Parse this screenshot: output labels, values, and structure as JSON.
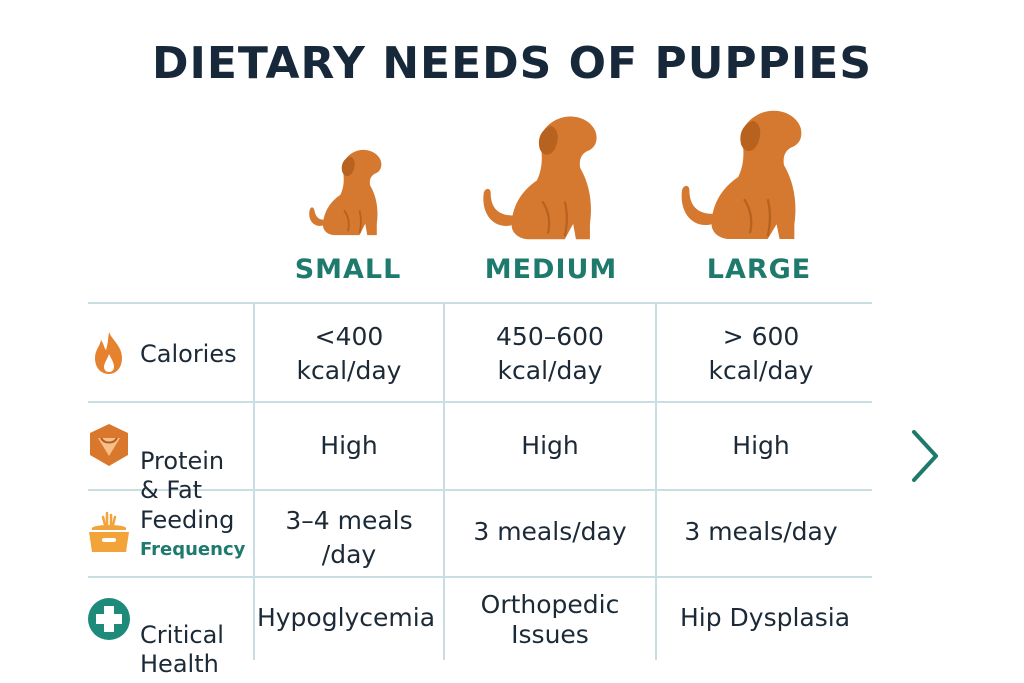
{
  "title": "DIETARY NEEDS OF PUPPIES",
  "columns": [
    "SMALL",
    "MEDIUM",
    "LARGE"
  ],
  "rows": [
    {
      "icon": "flame-icon",
      "label_main": "Calories",
      "label_sub": "",
      "values": [
        "<400\nkcal/day",
        "450–600\nkcal/day",
        "> 600\nkcal/day"
      ]
    },
    {
      "icon": "protein-shield-icon",
      "label_main": "Protein\n& Fat",
      "label_sub": "",
      "values": [
        "High",
        "High",
        "High"
      ]
    },
    {
      "icon": "food-bowl-icon",
      "label_main": "Feeding",
      "label_sub": "Frequency",
      "values": [
        "3–4 meals\n/day",
        "3 meals/day",
        "3 meals/day"
      ]
    },
    {
      "icon": "health-cross-icon",
      "label_main": "Critical\nHealth",
      "label_sub": "",
      "values": [
        "Hypoglycemia",
        "Orthopedic\nIssues",
        "Hip Dysplasia"
      ]
    }
  ],
  "colors": {
    "dog": "#d4792f",
    "dog_shade": "#b8621f",
    "accent_teal": "#1e7a6c",
    "flame": "#e6822e",
    "protein": "#d9782c",
    "bowl": "#f2a33a",
    "health": "#1e8a7a",
    "grid": "#c9dde3"
  },
  "nav": {
    "next_icon": "chevron-right-icon"
  }
}
